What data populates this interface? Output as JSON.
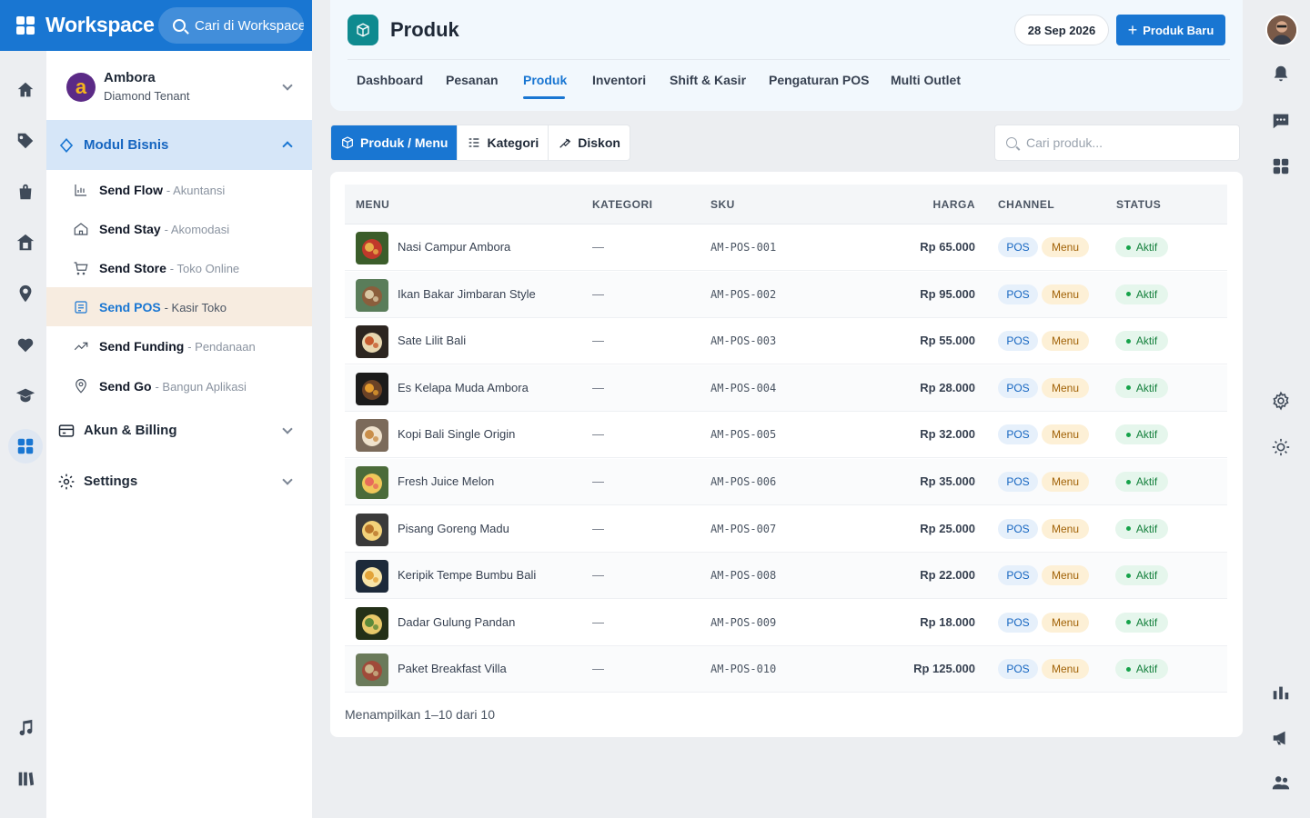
{
  "brand": {
    "title": "Workspace",
    "search_placeholder": "Cari di Workspace"
  },
  "tenant": {
    "name": "Ambora",
    "tier": "Diamond Tenant",
    "logo_letter": "a"
  },
  "sidebar": {
    "modul_label": "Modul Bisnis",
    "items": [
      {
        "name": "Send Flow",
        "desc": "- Akuntansi"
      },
      {
        "name": "Send Stay",
        "desc": "- Akomodasi"
      },
      {
        "name": "Send Store",
        "desc": "- Toko Online"
      },
      {
        "name": "Send POS",
        "desc": "- Kasir Toko"
      },
      {
        "name": "Send Funding",
        "desc": "- Pendanaan"
      },
      {
        "name": "Send Go",
        "desc": "- Bangun Aplikasi"
      }
    ],
    "akun_label": "Akun & Billing",
    "settings_label": "Settings"
  },
  "header": {
    "title": "Produk",
    "date": "28 Sep 2026",
    "new_button": "Produk Baru",
    "tabs": [
      "Dashboard",
      "Pesanan",
      "Produk",
      "Inventori",
      "Shift & Kasir",
      "Pengaturan POS",
      "Multi Outlet"
    ],
    "active_tab": "Produk"
  },
  "toolbar": {
    "segments": [
      "Produk / Menu",
      "Kategori",
      "Diskon"
    ],
    "search_placeholder": "Cari produk..."
  },
  "table": {
    "columns": {
      "menu": "MENU",
      "kategori": "KATEGORI",
      "sku": "SKU",
      "harga": "HARGA",
      "channel": "CHANNEL",
      "status": "STATUS"
    },
    "rows": [
      {
        "name": "Nasi Campur Ambora",
        "kategori": "—",
        "sku": "AM-POS-001",
        "harga": "Rp 65.000",
        "channel_1": "POS",
        "channel_2": "Menu",
        "status": "Aktif"
      },
      {
        "name": "Ikan Bakar Jimbaran Style",
        "kategori": "—",
        "sku": "AM-POS-002",
        "harga": "Rp 95.000",
        "channel_1": "POS",
        "channel_2": "Menu",
        "status": "Aktif"
      },
      {
        "name": "Sate Lilit Bali",
        "kategori": "—",
        "sku": "AM-POS-003",
        "harga": "Rp 55.000",
        "channel_1": "POS",
        "channel_2": "Menu",
        "status": "Aktif"
      },
      {
        "name": "Es Kelapa Muda Ambora",
        "kategori": "—",
        "sku": "AM-POS-004",
        "harga": "Rp 28.000",
        "channel_1": "POS",
        "channel_2": "Menu",
        "status": "Aktif"
      },
      {
        "name": "Kopi Bali Single Origin",
        "kategori": "—",
        "sku": "AM-POS-005",
        "harga": "Rp 32.000",
        "channel_1": "POS",
        "channel_2": "Menu",
        "status": "Aktif"
      },
      {
        "name": "Fresh Juice Melon",
        "kategori": "—",
        "sku": "AM-POS-006",
        "harga": "Rp 35.000",
        "channel_1": "POS",
        "channel_2": "Menu",
        "status": "Aktif"
      },
      {
        "name": "Pisang Goreng Madu",
        "kategori": "—",
        "sku": "AM-POS-007",
        "harga": "Rp 25.000",
        "channel_1": "POS",
        "channel_2": "Menu",
        "status": "Aktif"
      },
      {
        "name": "Keripik Tempe Bumbu Bali",
        "kategori": "—",
        "sku": "AM-POS-008",
        "harga": "Rp 22.000",
        "channel_1": "POS",
        "channel_2": "Menu",
        "status": "Aktif"
      },
      {
        "name": "Dadar Gulung Pandan",
        "kategori": "—",
        "sku": "AM-POS-009",
        "harga": "Rp 18.000",
        "channel_1": "POS",
        "channel_2": "Menu",
        "status": "Aktif"
      },
      {
        "name": "Paket Breakfast Villa",
        "kategori": "—",
        "sku": "AM-POS-010",
        "harga": "Rp 125.000",
        "channel_1": "POS",
        "channel_2": "Menu",
        "status": "Aktif"
      }
    ],
    "footer": "Menampilkan 1–10 dari 10"
  },
  "colors": {
    "primary": "#1976d2",
    "accent_teal": "#0f8a8f",
    "active_item_bg": "#f7ece0",
    "status_green": "#16a34a"
  }
}
